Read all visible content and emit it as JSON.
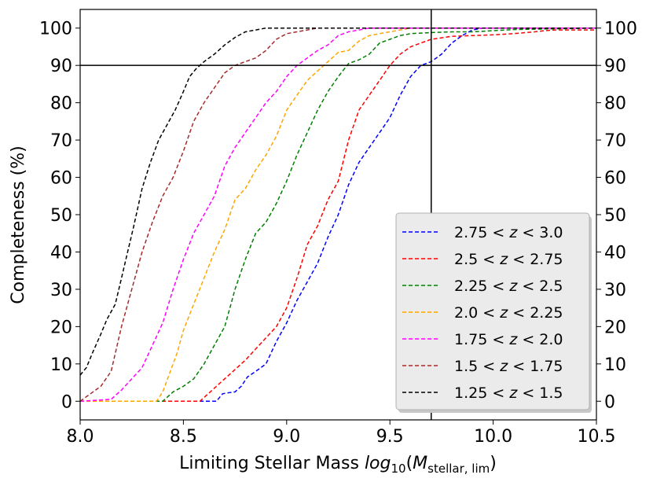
{
  "chart_data": {
    "type": "line",
    "title": "",
    "xlabel_prefix": "Limiting Stellar Mass ",
    "xlabel_func": "log",
    "xlabel_sub": "10",
    "xlabel_open": "(",
    "xlabel_var": "M",
    "xlabel_var_sub": "stellar, lim",
    "xlabel_close": ")",
    "ylabel": "Completeness (%)",
    "xlim": [
      8.0,
      10.5
    ],
    "ylim": [
      -5,
      105
    ],
    "xticks": [
      8.0,
      8.5,
      9.0,
      9.5,
      10.0,
      10.5
    ],
    "xtick_labels": [
      "8.0",
      "8.5",
      "9.0",
      "9.5",
      "10.0",
      "10.5"
    ],
    "yticks": [
      0,
      10,
      20,
      30,
      40,
      50,
      60,
      70,
      80,
      90,
      100
    ],
    "ytick_labels": [
      "0",
      "10",
      "20",
      "30",
      "40",
      "50",
      "60",
      "70",
      "80",
      "90",
      "100"
    ],
    "reference_lines": {
      "horizontal_y": 90,
      "vertical_x": 9.7
    },
    "legend_position": "lower-right",
    "series": [
      {
        "name": "2.75 < z < 3.0",
        "lo": "2.75",
        "hi": "3.0",
        "color": "#0000ff",
        "x": [
          8.0,
          8.66,
          8.69,
          8.71,
          8.75,
          8.78,
          8.81,
          8.85,
          8.9,
          8.95,
          9.0,
          9.05,
          9.1,
          9.15,
          9.2,
          9.25,
          9.3,
          9.35,
          9.4,
          9.45,
          9.5,
          9.55,
          9.6,
          9.65,
          9.7,
          9.75,
          9.8,
          9.85,
          9.9,
          9.95,
          10.0,
          10.05,
          10.2,
          10.5
        ],
        "y": [
          0,
          0,
          2,
          2.2,
          2.5,
          4,
          6.5,
          8,
          10,
          16,
          21,
          27,
          32,
          37,
          44,
          50,
          58,
          64,
          68,
          72,
          76,
          82,
          87,
          90,
          91,
          93,
          96,
          98,
          99.5,
          100,
          100,
          100,
          100,
          100
        ]
      },
      {
        "name": "2.5 < z < 2.75",
        "lo": "2.5",
        "hi": "2.75",
        "color": "#ff0000",
        "x": [
          8.0,
          8.58,
          8.63,
          8.68,
          8.72,
          8.76,
          8.8,
          8.85,
          8.9,
          8.95,
          9.0,
          9.05,
          9.1,
          9.15,
          9.2,
          9.25,
          9.3,
          9.35,
          9.4,
          9.45,
          9.5,
          9.55,
          9.6,
          9.65,
          9.7,
          9.8,
          9.9,
          10.0,
          10.1,
          10.2,
          10.25,
          10.3,
          10.5
        ],
        "y": [
          0,
          0,
          2.5,
          5,
          7,
          9,
          11,
          14,
          17,
          20,
          25,
          33,
          42,
          47,
          54,
          59,
          70,
          78,
          82,
          86,
          90,
          93,
          95,
          96,
          97,
          97.8,
          98,
          98.2,
          98.5,
          99,
          99.3,
          99.5,
          99.5
        ]
      },
      {
        "name": "2.25 < z < 2.5",
        "lo": "2.25",
        "hi": "2.5",
        "color": "#008000",
        "x": [
          8.0,
          8.4,
          8.45,
          8.5,
          8.55,
          8.6,
          8.65,
          8.7,
          8.75,
          8.8,
          8.85,
          8.9,
          8.95,
          9.0,
          9.05,
          9.1,
          9.15,
          9.2,
          9.25,
          9.3,
          9.35,
          9.4,
          9.45,
          9.5,
          9.55,
          9.6,
          9.7,
          9.8,
          9.9,
          10.0,
          10.1,
          10.5
        ],
        "y": [
          0,
          0,
          2.5,
          4,
          6,
          10,
          15,
          20,
          30,
          38,
          45,
          48,
          53,
          59,
          66,
          72,
          78,
          83,
          87,
          90.5,
          91.5,
          93,
          96,
          97,
          98,
          98.5,
          98.8,
          99,
          99,
          99.3,
          99.6,
          100
        ]
      },
      {
        "name": "2.0 < z < 2.25",
        "lo": "2.0",
        "hi": "2.25",
        "color": "#ffa500",
        "x": [
          8.0,
          8.37,
          8.4,
          8.43,
          8.47,
          8.5,
          8.55,
          8.6,
          8.65,
          8.7,
          8.75,
          8.8,
          8.85,
          8.9,
          8.95,
          9.0,
          9.05,
          9.1,
          9.15,
          9.2,
          9.25,
          9.3,
          9.35,
          9.4,
          9.45,
          9.5,
          9.55,
          9.6,
          9.7,
          10.5
        ],
        "y": [
          0,
          0,
          2.5,
          7,
          13,
          19,
          26,
          33,
          40,
          46,
          54,
          57,
          62,
          66,
          71,
          78,
          82,
          86,
          88.5,
          91,
          93.5,
          94,
          96.5,
          98,
          98.5,
          99,
          99.5,
          100,
          100,
          100
        ]
      },
      {
        "name": "1.75 < z < 2.0",
        "lo": "1.75",
        "hi": "2.0",
        "color": "#ff00ff",
        "x": [
          8.0,
          8.15,
          8.2,
          8.25,
          8.3,
          8.35,
          8.4,
          8.45,
          8.5,
          8.55,
          8.6,
          8.65,
          8.7,
          8.75,
          8.8,
          8.85,
          8.9,
          8.95,
          9.0,
          9.05,
          9.1,
          9.15,
          9.2,
          9.25,
          9.3,
          9.35,
          9.4,
          9.5,
          10.5
        ],
        "y": [
          0,
          0.5,
          3,
          6,
          9,
          15,
          21,
          30,
          38,
          45,
          50,
          55,
          63,
          68,
          72,
          76,
          80,
          83,
          87,
          90,
          92,
          94,
          95.5,
          98,
          99,
          99.5,
          100,
          100,
          100
        ]
      },
      {
        "name": "1.5 < z < 1.75",
        "lo": "1.5",
        "hi": "1.75",
        "color": "#a52a2a",
        "x": [
          8.0,
          8.05,
          8.1,
          8.15,
          8.2,
          8.25,
          8.3,
          8.35,
          8.4,
          8.45,
          8.5,
          8.55,
          8.6,
          8.65,
          8.7,
          8.75,
          8.8,
          8.85,
          8.9,
          8.95,
          9.0,
          9.05,
          9.1,
          9.15,
          9.2,
          10.5
        ],
        "y": [
          0,
          2,
          4,
          8,
          20,
          30,
          40,
          48,
          55,
          60,
          67,
          75,
          80,
          84,
          88,
          90,
          91,
          92,
          94,
          97,
          98.5,
          99,
          99.5,
          100,
          100,
          100
        ]
      },
      {
        "name": "1.25 < z < 1.5",
        "lo": "1.25",
        "hi": "1.5",
        "color": "#000000",
        "x": [
          8.0,
          8.03,
          8.06,
          8.1,
          8.13,
          8.17,
          8.2,
          8.23,
          8.26,
          8.3,
          8.34,
          8.38,
          8.42,
          8.46,
          8.5,
          8.53,
          8.56,
          8.6,
          8.65,
          8.7,
          8.75,
          8.8,
          8.85,
          8.9,
          10.5
        ],
        "y": [
          7,
          9,
          13,
          18,
          22,
          26,
          33,
          40,
          47,
          57,
          64,
          70,
          74,
          78,
          83,
          87,
          89,
          91,
          93,
          95.5,
          97.5,
          99,
          99.5,
          100,
          100
        ]
      }
    ]
  }
}
